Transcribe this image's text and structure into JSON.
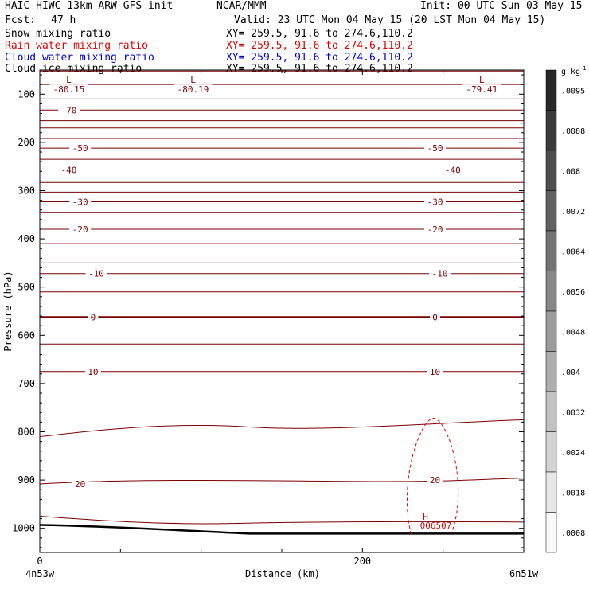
{
  "header": {
    "model": "HAIC-HIWC 13km ARW-GFS init",
    "org": "NCAR/MMM",
    "init": "Init: 00 UTC Sun 03 May 15",
    "fcst_label": "Fcst:",
    "fcst_value": "47 h",
    "valid": "Valid: 23 UTC Mon 04 May 15 (20 LST Mon 04 May 15)"
  },
  "fields": [
    {
      "name": "Snow mixing ratio",
      "xy": "XY= 259.5, 91.6 to 274.6,110.2",
      "color": "#000000"
    },
    {
      "name": "Rain water mixing ratio",
      "xy": "XY= 259.5, 91.6 to 274.6,110.2",
      "color": "#e00000"
    },
    {
      "name": "Cloud water mixing ratio",
      "xy": "XY= 259.5, 91.6 to 274.6,110.2",
      "color": "#0000cc"
    },
    {
      "name": "Cloud ice mixing ratio",
      "xy": "XY= 259.5, 91.6 to 274.6,110.2",
      "color": "#000000"
    }
  ],
  "axes": {
    "ylabel": "Pressure (hPa)",
    "xlabel": "Distance (km)",
    "left_point": "4n53w",
    "right_point": "6n51w"
  },
  "colorbar": {
    "unit": "g kg",
    "unit_exp": "-1",
    "labels": [
      ".0095",
      ".0088",
      ".008",
      ".0072",
      ".0064",
      ".0056",
      ".0048",
      ".004",
      ".0032",
      ".0024",
      ".0018",
      ".0008"
    ]
  },
  "chart_data": {
    "type": "contour",
    "x_ticks": [
      0,
      200
    ],
    "x_range": [
      0,
      300
    ],
    "y_ticks": [
      100,
      200,
      300,
      400,
      500,
      600,
      700,
      800,
      900,
      1000
    ],
    "y_range": [
      50,
      1050
    ],
    "isotherm_labels": [
      {
        "text": "-70",
        "x": 18,
        "p": 133
      },
      {
        "text": "-50",
        "x": 25,
        "p": 212
      },
      {
        "text": "-50",
        "x": 245,
        "p": 212
      },
      {
        "text": "-40",
        "x": 18,
        "p": 257
      },
      {
        "text": "-40",
        "x": 256,
        "p": 257
      },
      {
        "text": "-30",
        "x": 25,
        "p": 323
      },
      {
        "text": "-30",
        "x": 245,
        "p": 323
      },
      {
        "text": "-20",
        "x": 25,
        "p": 380
      },
      {
        "text": "-20",
        "x": 245,
        "p": 380
      },
      {
        "text": "-10",
        "x": 35,
        "p": 472
      },
      {
        "text": "-10",
        "x": 248,
        "p": 472
      },
      {
        "text": "0",
        "x": 33,
        "p": 562
      },
      {
        "text": "0",
        "x": 245,
        "p": 562
      },
      {
        "text": "10",
        "x": 33,
        "p": 675
      },
      {
        "text": "10",
        "x": 245,
        "p": 675
      },
      {
        "text": "20",
        "x": 25,
        "p": 908
      },
      {
        "text": "20",
        "x": 245,
        "p": 900
      }
    ],
    "lows": [
      {
        "label": "L",
        "value": "-80.15",
        "x": 18,
        "p": 70
      },
      {
        "label": "L",
        "value": "-80.19",
        "x": 95,
        "p": 70
      },
      {
        "label": "L",
        "value": "-79.41",
        "x": 274,
        "p": 70
      }
    ],
    "high": {
      "label": "H",
      "value": "006507",
      "x": 244,
      "p": 981
    },
    "isotherms_pressure": [
      52,
      80,
      110,
      133,
      155,
      170,
      192,
      212,
      235,
      257,
      283,
      303,
      323,
      345,
      380,
      410,
      450,
      472,
      510,
      562,
      618,
      675,
      790,
      908,
      985
    ],
    "surface_pressure": [
      993,
      1011
    ]
  }
}
